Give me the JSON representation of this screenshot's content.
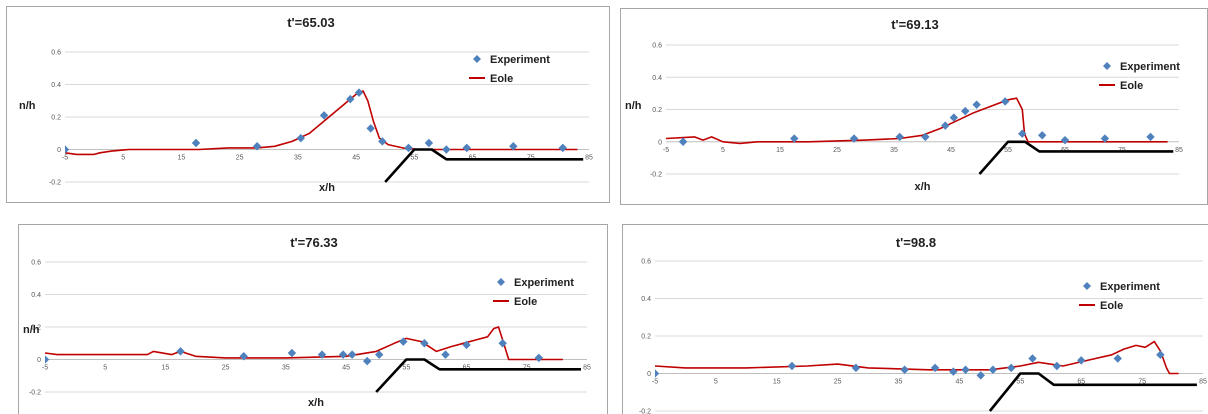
{
  "chart_data": [
    {
      "type": "scatter",
      "title": "t'=65.03",
      "xlabel": "x/h",
      "ylabel": "n/h",
      "xlim": [
        -5,
        85
      ],
      "ylim": [
        -0.2,
        0.6
      ],
      "x_ticks": [
        "-5",
        "5",
        "15",
        "25",
        "35",
        "45",
        "55",
        "65",
        "75",
        "85"
      ],
      "y_ticks": [
        "-0.2",
        "0",
        "0.2",
        "0.4",
        "0.6"
      ],
      "legend_position": "right",
      "series": [
        {
          "name": "Experiment",
          "kind": "markers",
          "color": "#4f81bd",
          "points": [
            [
              -5,
              0.0
            ],
            [
              17.5,
              0.04
            ],
            [
              28,
              0.02
            ],
            [
              35.5,
              0.07
            ],
            [
              39.5,
              0.21
            ],
            [
              44,
              0.31
            ],
            [
              45.5,
              0.35
            ],
            [
              47.5,
              0.13
            ],
            [
              49.5,
              0.05
            ],
            [
              54,
              0.01
            ],
            [
              57.5,
              0.04
            ],
            [
              60.5,
              0.0
            ],
            [
              64,
              0.01
            ],
            [
              72,
              0.02
            ],
            [
              80.5,
              0.01
            ]
          ]
        },
        {
          "name": "Eole",
          "kind": "line",
          "color": "#c00000",
          "points": [
            [
              -5,
              -0.02
            ],
            [
              -3,
              -0.03
            ],
            [
              0,
              -0.03
            ],
            [
              1,
              -0.02
            ],
            [
              3,
              -0.01
            ],
            [
              6,
              0.0
            ],
            [
              10,
              0.0
            ],
            [
              18,
              0.0
            ],
            [
              23,
              0.01
            ],
            [
              28,
              0.01
            ],
            [
              31,
              0.02
            ],
            [
              34,
              0.05
            ],
            [
              37,
              0.1
            ],
            [
              40,
              0.19
            ],
            [
              43,
              0.28
            ],
            [
              45,
              0.34
            ],
            [
              46.2,
              0.36
            ],
            [
              47,
              0.3
            ],
            [
              48,
              0.17
            ],
            [
              49,
              0.07
            ],
            [
              50.5,
              0.03
            ],
            [
              53,
              0.01
            ],
            [
              56,
              0.0
            ],
            [
              60,
              0.0
            ],
            [
              70,
              0.0
            ],
            [
              80,
              0.0
            ],
            [
              83,
              0.0
            ]
          ]
        },
        {
          "name": "",
          "kind": "line",
          "color": "#000000",
          "points": [
            [
              50,
              -0.2
            ],
            [
              55,
              0.0
            ],
            [
              58,
              0.0
            ],
            [
              60.5,
              -0.06
            ],
            [
              84,
              -0.06
            ]
          ]
        }
      ]
    },
    {
      "type": "scatter",
      "title": "t'=69.13",
      "xlabel": "x/h",
      "ylabel": "n/h",
      "xlim": [
        -5,
        85
      ],
      "ylim": [
        -0.2,
        0.6
      ],
      "x_ticks": [
        "-5",
        "5",
        "15",
        "25",
        "35",
        "45",
        "55",
        "65",
        "75",
        "85"
      ],
      "y_ticks": [
        "-0.2",
        "0",
        "0.2",
        "0.4",
        "0.6"
      ],
      "legend_position": "right",
      "series": [
        {
          "name": "Experiment",
          "kind": "markers",
          "color": "#4f81bd",
          "points": [
            [
              -2,
              0.0
            ],
            [
              17.5,
              0.02
            ],
            [
              28,
              0.02
            ],
            [
              36,
              0.03
            ],
            [
              40.5,
              0.03
            ],
            [
              44,
              0.1
            ],
            [
              45.5,
              0.15
            ],
            [
              47.5,
              0.19
            ],
            [
              49.5,
              0.23
            ],
            [
              54.5,
              0.25
            ],
            [
              57.5,
              0.05
            ],
            [
              61,
              0.04
            ],
            [
              65,
              0.01
            ],
            [
              72,
              0.02
            ],
            [
              80,
              0.03
            ]
          ]
        },
        {
          "name": "Eole",
          "kind": "line",
          "color": "#c00000",
          "points": [
            [
              -5,
              0.02
            ],
            [
              0,
              0.03
            ],
            [
              1.5,
              0.01
            ],
            [
              3,
              0.03
            ],
            [
              5,
              0.0
            ],
            [
              8,
              -0.01
            ],
            [
              11,
              0.0
            ],
            [
              20,
              0.0
            ],
            [
              30,
              0.01
            ],
            [
              36,
              0.02
            ],
            [
              40,
              0.04
            ],
            [
              43,
              0.08
            ],
            [
              46,
              0.13
            ],
            [
              49,
              0.18
            ],
            [
              52,
              0.22
            ],
            [
              55,
              0.26
            ],
            [
              56.5,
              0.27
            ],
            [
              57.5,
              0.2
            ],
            [
              57.9,
              0.05
            ],
            [
              58.5,
              0.0
            ],
            [
              62,
              0.0
            ],
            [
              70,
              0.0
            ],
            [
              83,
              0.0
            ]
          ]
        },
        {
          "name": "",
          "kind": "line",
          "color": "#000000",
          "points": [
            [
              50,
              -0.2
            ],
            [
              55,
              0.0
            ],
            [
              58,
              0.0
            ],
            [
              60.5,
              -0.06
            ],
            [
              84,
              -0.06
            ]
          ]
        }
      ]
    },
    {
      "type": "scatter",
      "title": "t'=76.33",
      "xlabel": "x/h",
      "ylabel": "n/h",
      "xlim": [
        -5,
        85
      ],
      "ylim": [
        -0.2,
        0.6
      ],
      "x_ticks": [
        "-5",
        "5",
        "15",
        "25",
        "35",
        "45",
        "55",
        "65",
        "75",
        "85"
      ],
      "y_ticks": [
        "-0.2",
        "0",
        "0.2",
        "0.4",
        "0.6"
      ],
      "legend_position": "right",
      "series": [
        {
          "name": "Experiment",
          "kind": "markers",
          "color": "#4f81bd",
          "points": [
            [
              -5,
              0.0
            ],
            [
              17.5,
              0.05
            ],
            [
              28,
              0.02
            ],
            [
              36,
              0.04
            ],
            [
              41,
              0.03
            ],
            [
              44.5,
              0.03
            ],
            [
              46,
              0.03
            ],
            [
              48.5,
              -0.01
            ],
            [
              50.5,
              0.03
            ],
            [
              54.5,
              0.11
            ],
            [
              58,
              0.1
            ],
            [
              61.5,
              0.03
            ],
            [
              65,
              0.09
            ],
            [
              71,
              0.1
            ],
            [
              77,
              0.01
            ]
          ]
        },
        {
          "name": "Eole",
          "kind": "line",
          "color": "#c00000",
          "points": [
            [
              -5,
              0.04
            ],
            [
              -3,
              0.03
            ],
            [
              5,
              0.03
            ],
            [
              12,
              0.03
            ],
            [
              13,
              0.05
            ],
            [
              16,
              0.03
            ],
            [
              17.5,
              0.05
            ],
            [
              20,
              0.02
            ],
            [
              25,
              0.01
            ],
            [
              35,
              0.01
            ],
            [
              45,
              0.02
            ],
            [
              50,
              0.05
            ],
            [
              53,
              0.1
            ],
            [
              55,
              0.13
            ],
            [
              57.5,
              0.11
            ],
            [
              60,
              0.05
            ],
            [
              62.5,
              0.08
            ],
            [
              64.5,
              0.1
            ],
            [
              66.5,
              0.12
            ],
            [
              68.5,
              0.14
            ],
            [
              69.5,
              0.19
            ],
            [
              70.3,
              0.2
            ],
            [
              71,
              0.12
            ],
            [
              72,
              0.0
            ],
            [
              77,
              0.0
            ],
            [
              81,
              0.0
            ]
          ]
        },
        {
          "name": "",
          "kind": "line",
          "color": "#000000",
          "points": [
            [
              50,
              -0.2
            ],
            [
              55,
              0.0
            ],
            [
              58,
              0.0
            ],
            [
              60.5,
              -0.06
            ],
            [
              84,
              -0.06
            ]
          ]
        }
      ]
    },
    {
      "type": "scatter",
      "title": "t'=98.8",
      "xlabel": "",
      "ylabel": "",
      "xlim": [
        -5,
        85
      ],
      "ylim": [
        -0.2,
        0.6
      ],
      "x_ticks": [
        "-5",
        "5",
        "15",
        "25",
        "35",
        "45",
        "55",
        "65",
        "75",
        "85"
      ],
      "y_ticks": [
        "-0.2",
        "0",
        "0.2",
        "0.4",
        "0.6"
      ],
      "legend_position": "right",
      "series": [
        {
          "name": "Experiment",
          "kind": "markers",
          "color": "#4f81bd",
          "points": [
            [
              -5,
              0.0
            ],
            [
              17.5,
              0.04
            ],
            [
              28,
              0.03
            ],
            [
              36,
              0.02
            ],
            [
              41,
              0.03
            ],
            [
              44,
              0.01
            ],
            [
              46,
              0.02
            ],
            [
              48.5,
              -0.01
            ],
            [
              50.5,
              0.02
            ],
            [
              53.5,
              0.03
            ],
            [
              57,
              0.08
            ],
            [
              61,
              0.04
            ],
            [
              65,
              0.07
            ],
            [
              71,
              0.08
            ],
            [
              78,
              0.1
            ]
          ]
        },
        {
          "name": "Eole",
          "kind": "line",
          "color": "#c00000",
          "points": [
            [
              -5,
              0.04
            ],
            [
              0,
              0.03
            ],
            [
              10,
              0.03
            ],
            [
              20,
              0.04
            ],
            [
              25,
              0.05
            ],
            [
              30,
              0.03
            ],
            [
              40,
              0.02
            ],
            [
              50,
              0.02
            ],
            [
              55,
              0.04
            ],
            [
              58,
              0.06
            ],
            [
              62,
              0.04
            ],
            [
              66,
              0.07
            ],
            [
              70,
              0.1
            ],
            [
              72,
              0.13
            ],
            [
              74,
              0.15
            ],
            [
              75.5,
              0.14
            ],
            [
              77,
              0.17
            ],
            [
              78,
              0.12
            ],
            [
              79,
              0.03
            ],
            [
              79.5,
              0.0
            ],
            [
              81,
              0.0
            ]
          ]
        },
        {
          "name": "",
          "kind": "line",
          "color": "#000000",
          "points": [
            [
              50,
              -0.2
            ],
            [
              55,
              0.0
            ],
            [
              58,
              0.0
            ],
            [
              60.5,
              -0.06
            ],
            [
              84,
              -0.06
            ]
          ]
        }
      ]
    }
  ]
}
